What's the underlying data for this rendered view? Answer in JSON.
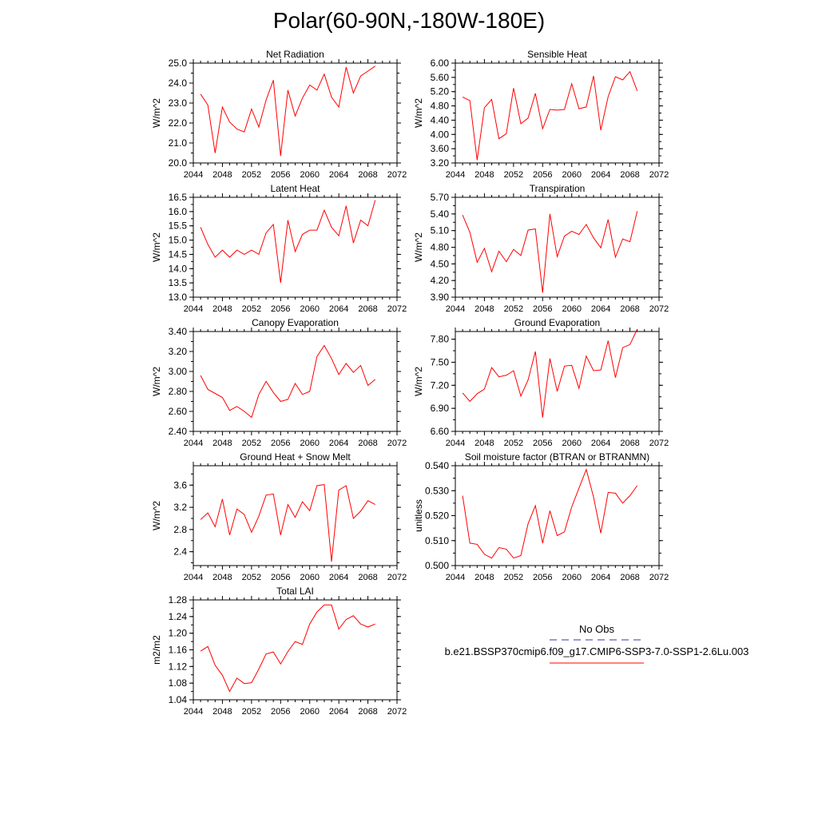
{
  "page": {
    "title": "Polar(60-90N,-180W-180E)"
  },
  "legend": {
    "obs_label": "No Obs",
    "model_label": "b.e21.BSSP370cmip6.f09_g17.CMIP6-SSP3-7.0-SSP1-2.6Lu.003",
    "obs_color": "#3333aa",
    "model_color": "#ff0000"
  },
  "x_axis": {
    "ticks": [
      2044,
      2048,
      2052,
      2056,
      2060,
      2064,
      2068,
      2072
    ],
    "range": [
      2044,
      2072
    ]
  },
  "chart_data": [
    {
      "id": "net-radiation",
      "type": "line",
      "title": "Net Radiation",
      "ylabel": "W/m^2",
      "ylim": [
        20.0,
        25.0
      ],
      "yticks": [
        "20.0",
        "21.0",
        "22.0",
        "23.0",
        "24.0",
        "25.0"
      ],
      "series": [
        {
          "x": [
            2045,
            2046,
            2047,
            2048,
            2049,
            2050,
            2051,
            2052,
            2053,
            2054,
            2055,
            2056,
            2057,
            2058,
            2059,
            2060,
            2061,
            2062,
            2063,
            2064,
            2065,
            2066,
            2067,
            2068,
            2069
          ],
          "values": [
            23.45,
            22.9,
            20.5,
            22.8,
            22.05,
            21.7,
            21.55,
            22.7,
            21.8,
            23.15,
            24.15,
            20.35,
            23.65,
            22.35,
            23.25,
            23.9,
            23.65,
            24.45,
            23.3,
            22.8,
            24.8,
            23.5,
            24.35,
            24.6,
            24.85
          ]
        }
      ]
    },
    {
      "id": "sensible-heat",
      "type": "line",
      "title": "Sensible Heat",
      "ylabel": "W/m^2",
      "ylim": [
        3.2,
        6.0
      ],
      "yticks": [
        "3.20",
        "3.60",
        "4.00",
        "4.40",
        "4.80",
        "5.20",
        "5.60",
        "6.00"
      ],
      "series": [
        {
          "x": [
            2045,
            2046,
            2047,
            2048,
            2049,
            2050,
            2051,
            2052,
            2053,
            2054,
            2055,
            2056,
            2057,
            2058,
            2059,
            2060,
            2061,
            2062,
            2063,
            2064,
            2065,
            2066,
            2067,
            2068,
            2069
          ],
          "values": [
            5.05,
            4.95,
            3.28,
            4.75,
            4.98,
            3.88,
            4.02,
            5.3,
            4.3,
            4.46,
            5.15,
            4.16,
            4.7,
            4.68,
            4.7,
            5.42,
            4.72,
            4.77,
            5.64,
            4.12,
            5.06,
            5.62,
            5.53,
            5.76,
            5.22
          ]
        }
      ]
    },
    {
      "id": "latent-heat",
      "type": "line",
      "title": "Latent Heat",
      "ylabel": "W/m^2",
      "ylim": [
        13.0,
        16.5
      ],
      "yticks": [
        "13.0",
        "13.5",
        "14.0",
        "14.5",
        "15.0",
        "15.5",
        "16.0",
        "16.5"
      ],
      "series": [
        {
          "x": [
            2045,
            2046,
            2047,
            2048,
            2049,
            2050,
            2051,
            2052,
            2053,
            2054,
            2055,
            2056,
            2057,
            2058,
            2059,
            2060,
            2061,
            2062,
            2063,
            2064,
            2065,
            2066,
            2067,
            2068,
            2069
          ],
          "values": [
            15.45,
            14.85,
            14.4,
            14.65,
            14.4,
            14.65,
            14.5,
            14.65,
            14.5,
            15.25,
            15.55,
            13.5,
            15.7,
            14.6,
            15.2,
            15.35,
            15.35,
            16.05,
            15.45,
            15.15,
            16.2,
            14.9,
            15.7,
            15.5,
            16.4
          ]
        }
      ]
    },
    {
      "id": "transpiration",
      "type": "line",
      "title": "Transpiration",
      "ylabel": "W/m^2",
      "ylim": [
        3.9,
        5.7
      ],
      "yticks": [
        "3.90",
        "4.20",
        "4.50",
        "4.80",
        "5.10",
        "5.40",
        "5.70"
      ],
      "series": [
        {
          "x": [
            2045,
            2046,
            2047,
            2048,
            2049,
            2050,
            2051,
            2052,
            2053,
            2054,
            2055,
            2056,
            2057,
            2058,
            2059,
            2060,
            2061,
            2062,
            2063,
            2064,
            2065,
            2066,
            2067,
            2068,
            2069
          ],
          "values": [
            5.38,
            5.07,
            4.53,
            4.78,
            4.36,
            4.73,
            4.54,
            4.76,
            4.65,
            5.11,
            5.13,
            3.98,
            5.4,
            4.63,
            5.0,
            5.09,
            5.03,
            5.21,
            4.97,
            4.79,
            5.3,
            4.62,
            4.95,
            4.9,
            5.45
          ]
        }
      ]
    },
    {
      "id": "canopy-evaporation",
      "type": "line",
      "title": "Canopy Evaporation",
      "ylabel": "W/m^2",
      "ylim": [
        2.4,
        3.4
      ],
      "yticks": [
        "2.40",
        "2.60",
        "2.80",
        "3.00",
        "3.20",
        "3.40"
      ],
      "series": [
        {
          "x": [
            2045,
            2046,
            2047,
            2048,
            2049,
            2050,
            2051,
            2052,
            2053,
            2054,
            2055,
            2056,
            2057,
            2058,
            2059,
            2060,
            2061,
            2062,
            2063,
            2064,
            2065,
            2066,
            2067,
            2068,
            2069
          ],
          "values": [
            2.96,
            2.82,
            2.78,
            2.74,
            2.61,
            2.65,
            2.6,
            2.54,
            2.77,
            2.9,
            2.79,
            2.7,
            2.72,
            2.88,
            2.77,
            2.8,
            3.15,
            3.26,
            3.13,
            2.97,
            3.08,
            2.99,
            3.06,
            2.86,
            2.92
          ]
        }
      ]
    },
    {
      "id": "ground-evaporation",
      "type": "line",
      "title": "Ground Evaporation",
      "ylabel": "W/m^2",
      "ylim": [
        6.6,
        7.9
      ],
      "yticks": [
        "6.60",
        "6.90",
        "7.20",
        "7.50",
        "7.80"
      ],
      "series": [
        {
          "x": [
            2045,
            2046,
            2047,
            2048,
            2049,
            2050,
            2051,
            2052,
            2053,
            2054,
            2055,
            2056,
            2057,
            2058,
            2059,
            2060,
            2061,
            2062,
            2063,
            2064,
            2065,
            2066,
            2067,
            2068,
            2069
          ],
          "values": [
            7.1,
            6.99,
            7.09,
            7.15,
            7.43,
            7.31,
            7.33,
            7.39,
            7.06,
            7.27,
            7.64,
            6.78,
            7.55,
            7.12,
            7.45,
            7.46,
            7.16,
            7.58,
            7.39,
            7.4,
            7.78,
            7.3,
            7.69,
            7.73,
            7.93
          ]
        }
      ]
    },
    {
      "id": "ground-heat-snow-melt",
      "type": "line",
      "title": "Ground Heat + Snow Melt",
      "ylabel": "W/m^2",
      "ylim": [
        2.15,
        3.95
      ],
      "yticks": [
        "2.4",
        "2.8",
        "3.2",
        "3.6"
      ],
      "series": [
        {
          "x": [
            2045,
            2046,
            2047,
            2048,
            2049,
            2050,
            2051,
            2052,
            2053,
            2054,
            2055,
            2056,
            2057,
            2058,
            2059,
            2060,
            2061,
            2062,
            2063,
            2064,
            2065,
            2066,
            2067,
            2068,
            2069
          ],
          "values": [
            2.98,
            3.1,
            2.85,
            3.35,
            2.7,
            3.17,
            3.07,
            2.75,
            3.04,
            3.42,
            3.44,
            2.7,
            3.25,
            3.02,
            3.3,
            3.14,
            3.59,
            3.61,
            2.22,
            3.51,
            3.59,
            3.0,
            3.13,
            3.32,
            3.25
          ]
        }
      ]
    },
    {
      "id": "soil-moisture-factor",
      "type": "line",
      "title": "Soil moisture factor (BTRAN or BTRANMN)",
      "ylabel": "unitless",
      "ylim": [
        0.5,
        0.54
      ],
      "yticks": [
        "0.500",
        "0.510",
        "0.520",
        "0.530",
        "0.540"
      ],
      "series": [
        {
          "x": [
            2045,
            2046,
            2047,
            2048,
            2049,
            2050,
            2051,
            2052,
            2053,
            2054,
            2055,
            2056,
            2057,
            2058,
            2059,
            2060,
            2061,
            2062,
            2063,
            2064,
            2065,
            2066,
            2067,
            2068,
            2069
          ],
          "values": [
            0.528,
            0.509,
            0.5085,
            0.5045,
            0.503,
            0.5072,
            0.5066,
            0.503,
            0.504,
            0.5168,
            0.524,
            0.509,
            0.522,
            0.512,
            0.5135,
            0.5235,
            0.531,
            0.5385,
            0.5275,
            0.513,
            0.5293,
            0.529,
            0.525,
            0.528,
            0.532
          ]
        }
      ]
    },
    {
      "id": "total-lai",
      "type": "line",
      "title": "Total LAI",
      "ylabel": "m2/m2",
      "ylim": [
        1.04,
        1.28
      ],
      "yticks": [
        "1.04",
        "1.08",
        "1.12",
        "1.16",
        "1.20",
        "1.24",
        "1.28"
      ],
      "series": [
        {
          "x": [
            2045,
            2046,
            2047,
            2048,
            2049,
            2050,
            2051,
            2052,
            2053,
            2054,
            2055,
            2056,
            2057,
            2058,
            2059,
            2060,
            2061,
            2062,
            2063,
            2064,
            2065,
            2066,
            2067,
            2068,
            2069
          ],
          "values": [
            1.157,
            1.168,
            1.123,
            1.099,
            1.06,
            1.092,
            1.079,
            1.081,
            1.114,
            1.15,
            1.155,
            1.126,
            1.156,
            1.18,
            1.173,
            1.222,
            1.251,
            1.268,
            1.268,
            1.21,
            1.233,
            1.242,
            1.222,
            1.215,
            1.222
          ]
        }
      ]
    }
  ]
}
